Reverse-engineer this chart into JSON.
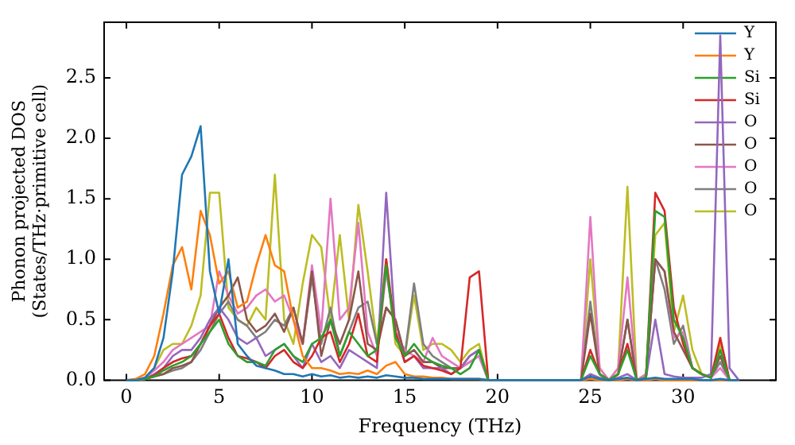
{
  "chart_data": {
    "type": "line",
    "xlabel": "Frequency (THz)",
    "ylabel": "Phonon projected DOS\n(States/THz·primitive cell)",
    "x": [
      0,
      0.5,
      1,
      1.5,
      2,
      2.5,
      3,
      3.5,
      4,
      4.5,
      5,
      5.5,
      6,
      6.5,
      7,
      7.5,
      8,
      8.5,
      9,
      9.5,
      10,
      10.5,
      11,
      11.5,
      12,
      12.5,
      13,
      13.5,
      14,
      14.5,
      15,
      15.5,
      16,
      16.5,
      17,
      17.5,
      18,
      18.5,
      19,
      19.5,
      20,
      20.5,
      21,
      21.5,
      22,
      22.5,
      23,
      23.5,
      24,
      24.5,
      25,
      25.5,
      26,
      26.5,
      27,
      27.5,
      28,
      28.5,
      29,
      29.5,
      30,
      30.5,
      31,
      31.5,
      32,
      32.5,
      33
    ],
    "xlim": [
      -1.2,
      35
    ],
    "xticks": [
      0,
      5,
      10,
      15,
      20,
      25,
      30
    ],
    "ylim": [
      0,
      2.96
    ],
    "yticks": [
      {
        "value": 0,
        "label": "0.0"
      },
      {
        "value": 0.5,
        "label": "0.5"
      },
      {
        "value": 1,
        "label": "1.0"
      },
      {
        "value": 1.5,
        "label": "1.5"
      },
      {
        "value": 2,
        "label": "2.0"
      },
      {
        "value": 2.5,
        "label": "2.5"
      }
    ],
    "grid": false,
    "legend": "top right",
    "marker": "none",
    "line_style": "solid",
    "series": [
      {
        "name": "Y",
        "color": "#1f77b4",
        "values": [
          0,
          0,
          0.02,
          0.1,
          0.35,
          0.9,
          1.7,
          1.85,
          2.1,
          0.9,
          0.55,
          1.0,
          0.3,
          0.2,
          0.12,
          0.1,
          0.08,
          0.05,
          0.05,
          0.03,
          0.05,
          0.03,
          0.04,
          0.02,
          0.03,
          0.02,
          0.03,
          0.02,
          0.04,
          0.03,
          0.02,
          0.02,
          0.01,
          0.01,
          0.01,
          0.01,
          0.01,
          0.01,
          0.01,
          0,
          0,
          0,
          0,
          0,
          0,
          0,
          0,
          0,
          0,
          0,
          0.03,
          0.01,
          0,
          0.01,
          0.02,
          0,
          0.01,
          0.02,
          0.01,
          0.01,
          0.01,
          0.01,
          0,
          0,
          0.01,
          0,
          0
        ]
      },
      {
        "name": "Y",
        "color": "#ff7f0e",
        "values": [
          0,
          0.01,
          0.05,
          0.2,
          0.55,
          0.95,
          1.1,
          0.75,
          1.4,
          1.2,
          0.8,
          0.9,
          0.6,
          0.65,
          0.95,
          1.2,
          0.95,
          0.9,
          0.5,
          0.2,
          0.1,
          0.1,
          0.08,
          0.05,
          0.06,
          0.05,
          0.08,
          0.05,
          0.12,
          0.15,
          0.05,
          0.03,
          0.03,
          0.02,
          0.02,
          0.01,
          0.01,
          0.01,
          0.01,
          0,
          0,
          0,
          0,
          0,
          0,
          0,
          0,
          0,
          0,
          0,
          0.01,
          0,
          0,
          0,
          0.01,
          0,
          0,
          0.01,
          0,
          0,
          0,
          0,
          0,
          0,
          0,
          0,
          0
        ]
      },
      {
        "name": "Si",
        "color": "#2ca02c",
        "values": [
          0,
          0,
          0.01,
          0.03,
          0.08,
          0.12,
          0.15,
          0.2,
          0.3,
          0.4,
          0.5,
          0.3,
          0.2,
          0.15,
          0.15,
          0.12,
          0.25,
          0.3,
          0.2,
          0.15,
          0.3,
          0.35,
          0.5,
          0.2,
          0.4,
          0.3,
          0.2,
          0.25,
          0.95,
          0.35,
          0.2,
          0.3,
          0.2,
          0.15,
          0.12,
          0.1,
          0.05,
          0.1,
          0.25,
          0,
          0,
          0,
          0,
          0,
          0,
          0,
          0,
          0,
          0,
          0,
          0.2,
          0.05,
          0,
          0.05,
          0.25,
          0,
          0.02,
          1.4,
          1.35,
          0.5,
          0.35,
          0.1,
          0.05,
          0.02,
          0.25,
          0,
          0
        ]
      },
      {
        "name": "Si",
        "color": "#d62728",
        "values": [
          0,
          0,
          0.01,
          0.04,
          0.1,
          0.15,
          0.18,
          0.2,
          0.3,
          0.45,
          0.55,
          0.35,
          0.2,
          0.18,
          0.15,
          0.1,
          0.2,
          0.25,
          0.15,
          0.1,
          0.2,
          0.35,
          0.4,
          0.15,
          0.3,
          0.55,
          0.2,
          0.15,
          1.0,
          0.4,
          0.15,
          0.2,
          0.12,
          0.1,
          0.08,
          0.05,
          0.1,
          0.85,
          0.9,
          0,
          0,
          0,
          0,
          0,
          0,
          0,
          0,
          0,
          0,
          0,
          0.25,
          0.05,
          0,
          0.05,
          0.3,
          0,
          0.02,
          1.55,
          1.4,
          0.6,
          0.3,
          0.1,
          0.05,
          0.02,
          0.35,
          0,
          0
        ]
      },
      {
        "name": "O",
        "color": "#9467bd",
        "values": [
          0,
          0,
          0.01,
          0.05,
          0.1,
          0.2,
          0.25,
          0.25,
          0.35,
          0.5,
          0.6,
          0.5,
          0.35,
          0.3,
          0.35,
          0.2,
          0.25,
          0.3,
          0.2,
          0.1,
          0.3,
          0.15,
          0.2,
          0.1,
          0.25,
          0.2,
          0.15,
          0.1,
          1.55,
          0.4,
          0.15,
          0.2,
          0.1,
          0.1,
          0.1,
          0.05,
          0.1,
          0.2,
          0.25,
          0,
          0,
          0,
          0,
          0,
          0,
          0,
          0,
          0,
          0,
          0,
          0.05,
          0.02,
          0,
          0.02,
          0.05,
          0,
          0.02,
          0.5,
          0.05,
          0.03,
          0.02,
          0.02,
          0.02,
          0.05,
          2.85,
          0.1,
          0
        ]
      },
      {
        "name": "O",
        "color": "#8c564b",
        "values": [
          0,
          0,
          0.01,
          0.03,
          0.05,
          0.1,
          0.12,
          0.15,
          0.3,
          0.45,
          0.6,
          0.7,
          0.85,
          0.5,
          0.4,
          0.45,
          0.55,
          0.4,
          0.6,
          0.3,
          0.9,
          0.2,
          0.5,
          0.3,
          0.5,
          0.9,
          0.3,
          0.25,
          0.6,
          0.5,
          0.2,
          0.25,
          0.15,
          0.15,
          0.1,
          0.1,
          0.1,
          0.2,
          0.25,
          0,
          0,
          0,
          0,
          0,
          0,
          0,
          0,
          0,
          0,
          0,
          0.55,
          0.05,
          0,
          0.05,
          0.5,
          0,
          0.02,
          1.0,
          0.9,
          0.4,
          0.25,
          0.1,
          0.05,
          0.02,
          0.2,
          0,
          0
        ]
      },
      {
        "name": "O",
        "color": "#e377c2",
        "values": [
          0,
          0,
          0.02,
          0.08,
          0.15,
          0.25,
          0.3,
          0.35,
          0.4,
          0.45,
          0.9,
          0.7,
          0.55,
          0.6,
          0.7,
          0.75,
          0.65,
          0.7,
          0.5,
          0.3,
          0.95,
          0.4,
          1.5,
          0.5,
          0.6,
          1.3,
          0.4,
          0.2,
          0.9,
          0.4,
          0.25,
          0.2,
          0.15,
          0.35,
          0.2,
          0.15,
          0.1,
          0.15,
          0.2,
          0,
          0,
          0,
          0,
          0,
          0,
          0,
          0,
          0,
          0,
          0,
          1.35,
          0.1,
          0,
          0.1,
          0.85,
          0,
          0.05,
          1.0,
          0.9,
          0.35,
          0.4,
          0.1,
          0.05,
          0.02,
          0.1,
          0,
          0
        ]
      },
      {
        "name": "O",
        "color": "#7f7f7f",
        "values": [
          0,
          0,
          0.01,
          0.03,
          0.05,
          0.08,
          0.1,
          0.15,
          0.25,
          0.4,
          0.55,
          0.65,
          0.5,
          0.45,
          0.35,
          0.4,
          0.5,
          0.45,
          0.6,
          0.3,
          0.85,
          0.3,
          0.6,
          0.2,
          0.4,
          0.6,
          0.65,
          0.3,
          0.6,
          0.5,
          0.2,
          0.8,
          0.3,
          0.2,
          0.15,
          0.1,
          0.1,
          0.15,
          0.2,
          0,
          0,
          0,
          0,
          0,
          0,
          0,
          0,
          0,
          0,
          0,
          0.65,
          0.05,
          0,
          0.05,
          0.5,
          0,
          0.02,
          1.0,
          0.75,
          0.3,
          0.45,
          0.1,
          0.05,
          0.02,
          0.15,
          0,
          0
        ]
      },
      {
        "name": "O",
        "color": "#bcbd22",
        "values": [
          null,
          null,
          0.02,
          0.1,
          0.25,
          0.3,
          0.3,
          0.45,
          0.7,
          1.55,
          1.55,
          0.6,
          0.5,
          0.45,
          0.6,
          0.5,
          1.7,
          0.5,
          0.3,
          0.8,
          1.2,
          1.1,
          0.5,
          1.2,
          0.5,
          1.45,
          0.9,
          0.3,
          1.0,
          0.3,
          0.2,
          0.7,
          0.25,
          0.3,
          0.3,
          0.25,
          0.15,
          0.25,
          0.3,
          0,
          0,
          0,
          0,
          0,
          0,
          0,
          0,
          0,
          0,
          0,
          1.0,
          0.1,
          0,
          0.1,
          1.6,
          0,
          0.05,
          1.2,
          1.3,
          0.4,
          0.7,
          0.25,
          0.05,
          0.02,
          0.3,
          0,
          0
        ]
      }
    ]
  }
}
